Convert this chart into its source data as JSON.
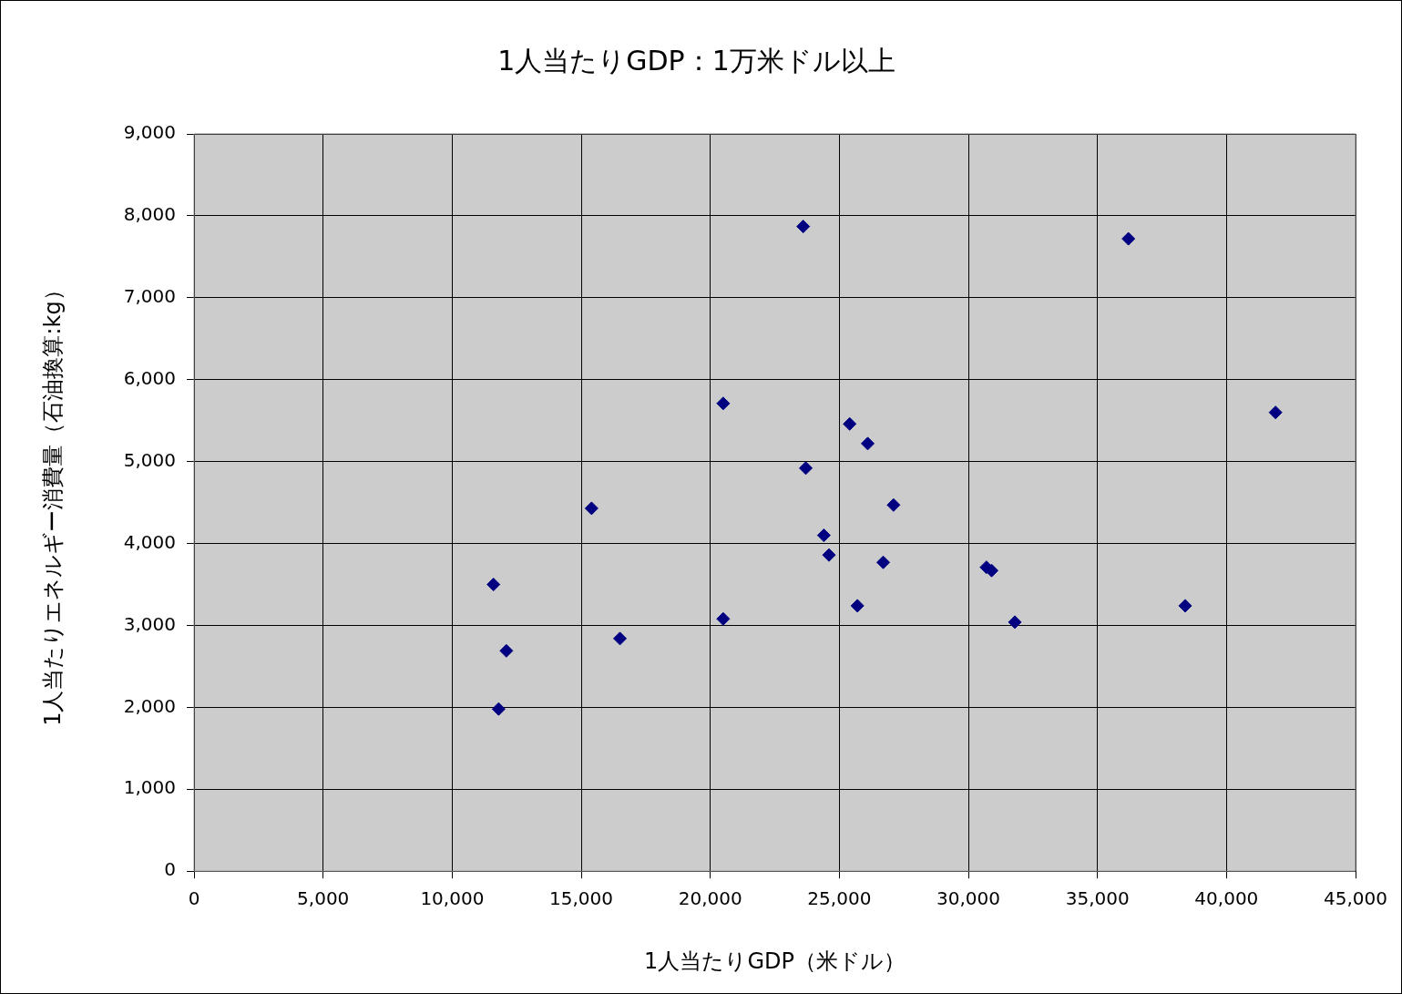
{
  "chart_data": {
    "type": "scatter",
    "title": "1人当たりGDP：1万米ドル以上",
    "xlabel": "1人当たりGDP（米ドル）",
    "ylabel": "1人当たりエネルギー消費量（石油換算:kg）",
    "x": [
      23600,
      36200,
      20500,
      41900,
      25400,
      26100,
      23700,
      15400,
      27100,
      24400,
      24600,
      26700,
      30700,
      30900,
      11600,
      20500,
      25700,
      31800,
      38400,
      16500,
      12100,
      11800
    ],
    "series": [
      {
        "color": "#000080",
        "values": [
          7870,
          7720,
          5710,
          5600,
          5460,
          5220,
          4920,
          4430,
          4470,
          4100,
          3860,
          3770,
          3710,
          3670,
          3500,
          3080,
          3240,
          3040,
          3240,
          2840,
          2690,
          1980
        ]
      }
    ],
    "xlim": [
      0,
      45000
    ],
    "xticks": [
      0,
      {
        "value": 5000,
        "label": "5,000"
      },
      {
        "value": 10000,
        "label": "10,000"
      },
      {
        "value": 15000,
        "label": "15,000"
      },
      {
        "value": 20000,
        "label": "20,000"
      },
      {
        "value": 25000,
        "label": "25,000"
      },
      {
        "value": 30000,
        "label": "30,000"
      },
      {
        "value": 35000,
        "label": "35,000"
      },
      {
        "value": 40000,
        "label": "40,000"
      },
      {
        "value": 45000,
        "label": "45,000"
      }
    ],
    "ylim": [
      0,
      9000
    ],
    "yticks": [
      0,
      {
        "value": 1000,
        "label": "1,000"
      },
      {
        "value": 2000,
        "label": "2,000"
      },
      {
        "value": 3000,
        "label": "3,000"
      },
      {
        "value": 4000,
        "label": "4,000"
      },
      {
        "value": 5000,
        "label": "5,000"
      },
      {
        "value": 6000,
        "label": "6,000"
      },
      {
        "value": 7000,
        "label": "7,000"
      },
      {
        "value": 8000,
        "label": "8,000"
      },
      {
        "value": 9000,
        "label": "9,000"
      }
    ],
    "grid": true,
    "legend": false,
    "marker": "diamond"
  }
}
